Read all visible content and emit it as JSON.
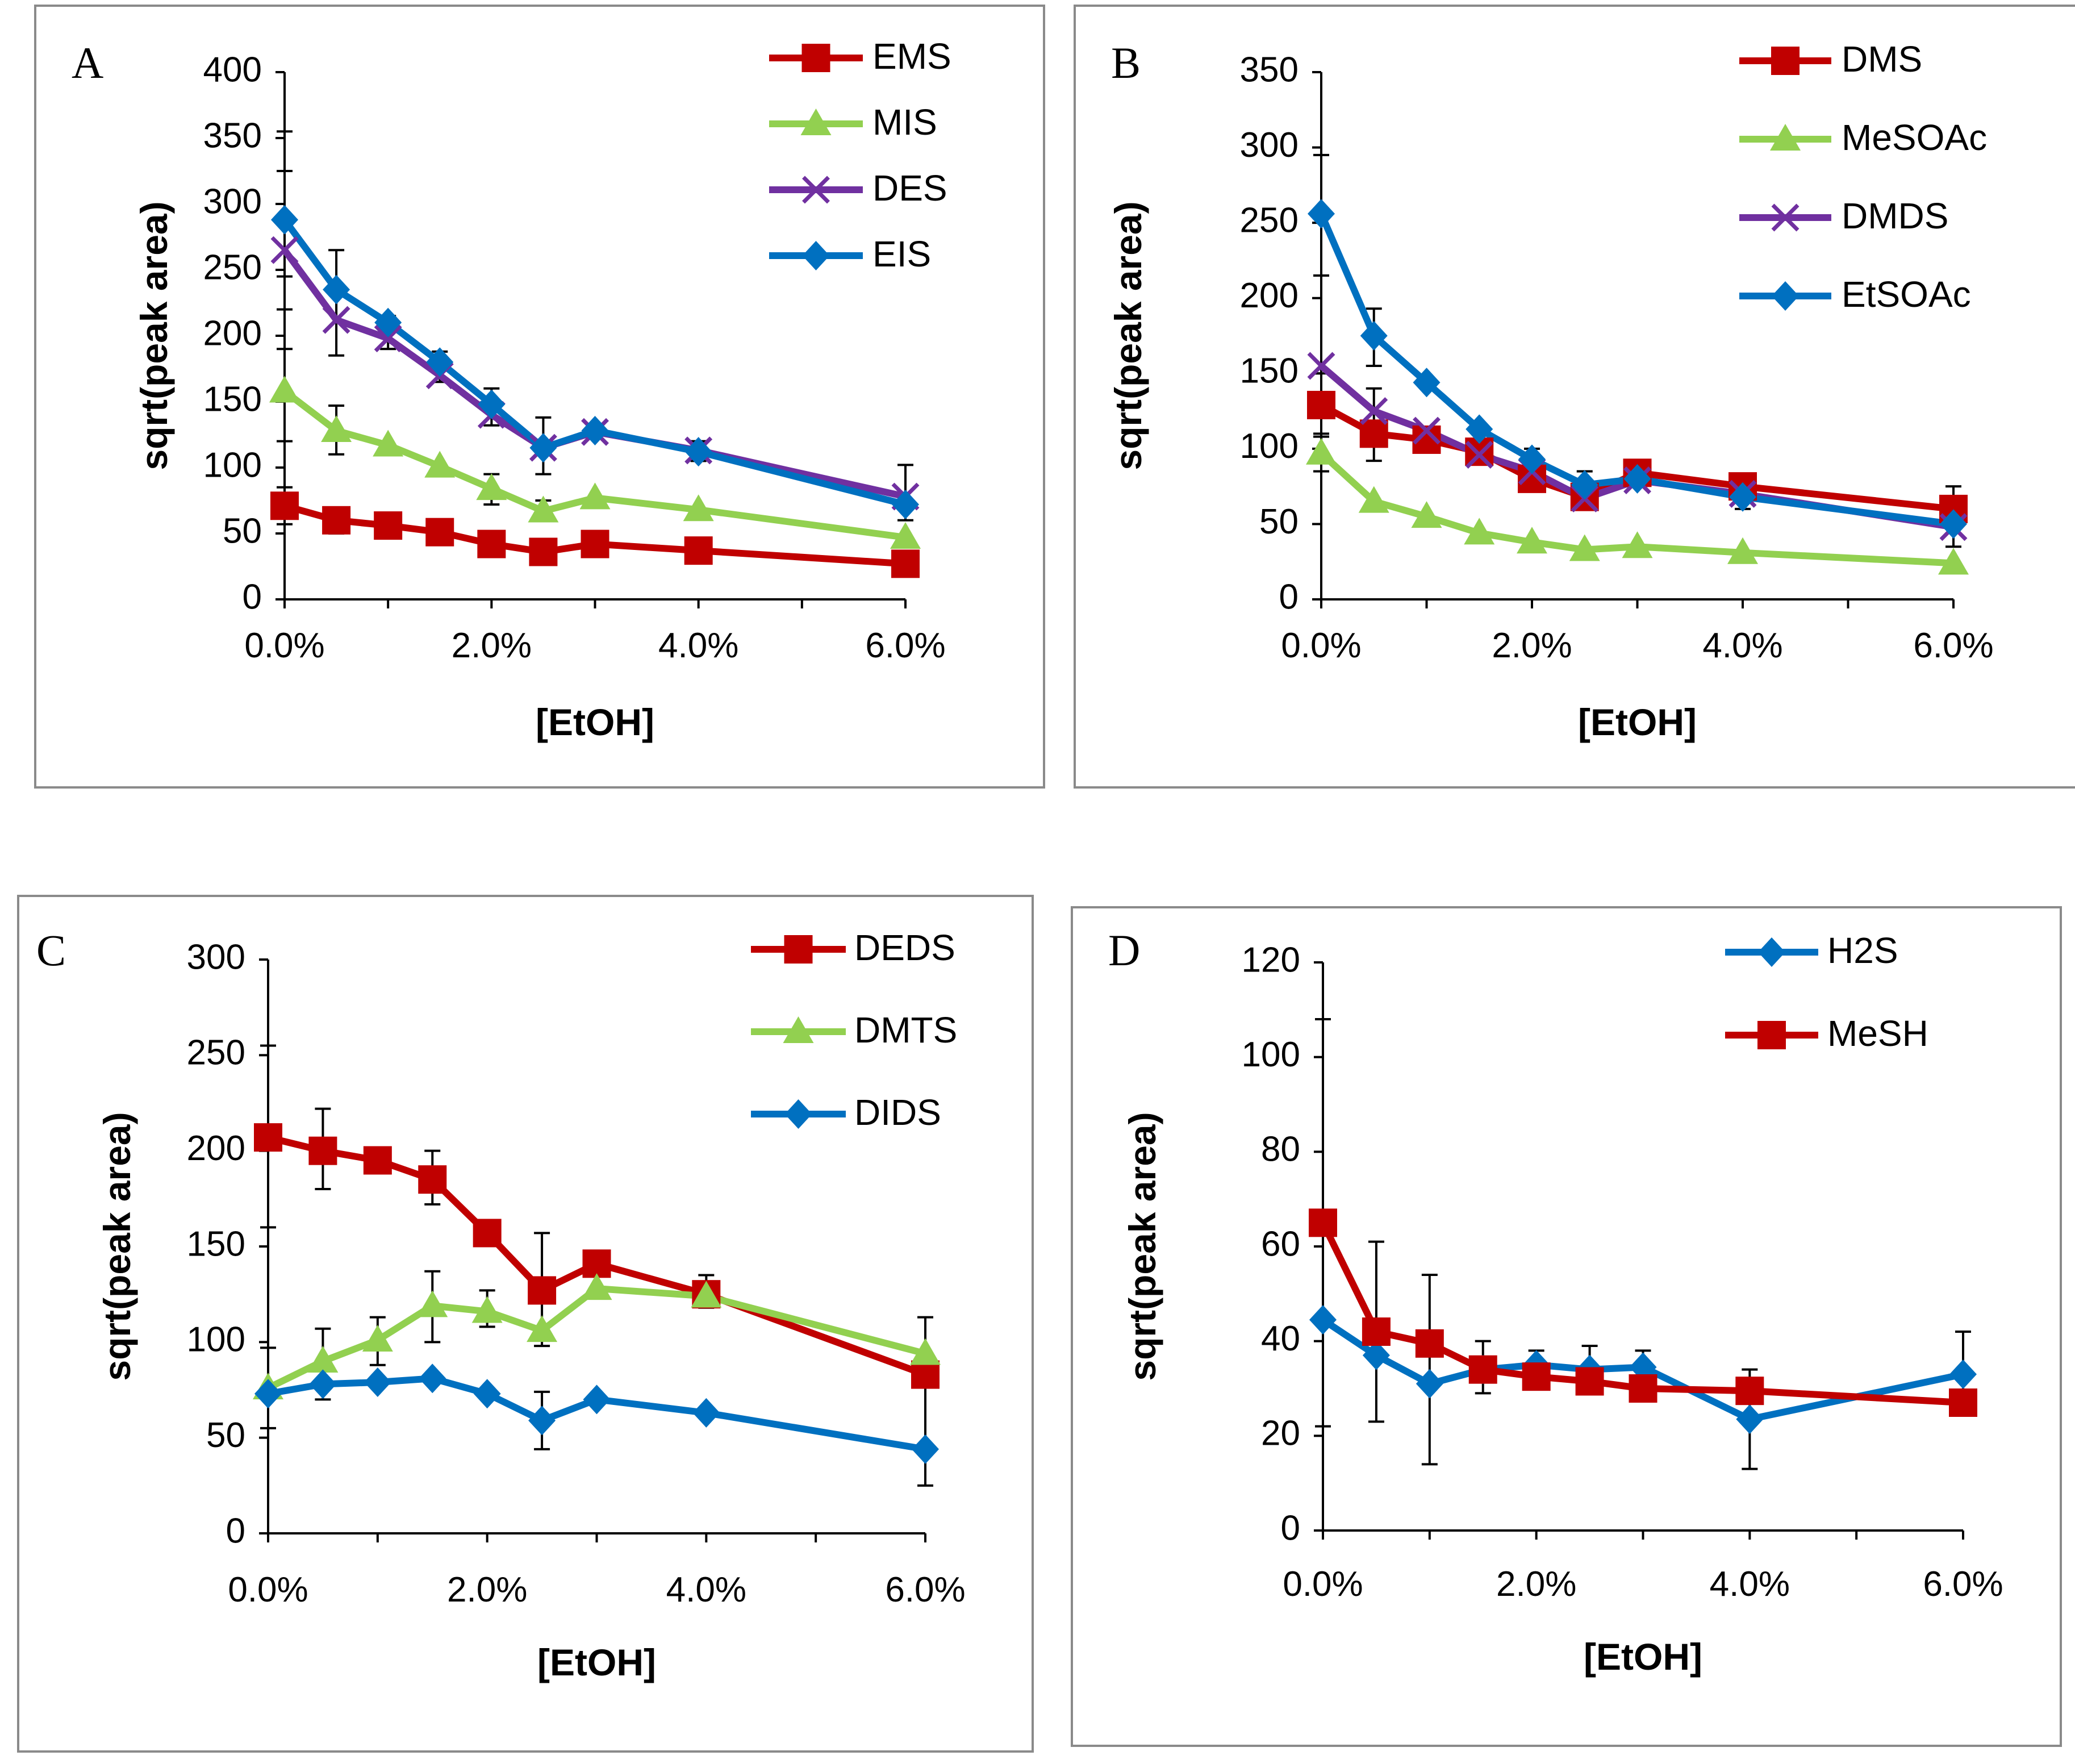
{
  "colors": {
    "red": "#C00000",
    "green": "#92D050",
    "purple": "#7030A0",
    "blue": "#0070C0"
  },
  "chart_data": [
    {
      "type": "line",
      "panel_letter": "A",
      "xlabel": "[EtOH]",
      "ylabel": "sqrt(peak area)",
      "x": [
        0,
        0.5,
        1,
        1.5,
        2,
        2.5,
        3,
        4,
        6
      ],
      "xlim": [
        0,
        6
      ],
      "xticks": [
        0,
        2,
        4,
        6
      ],
      "xtick_labels": [
        "0.0%",
        "2.0%",
        "4.0%",
        "6.0%"
      ],
      "ylim": [
        0,
        400
      ],
      "yticks": [
        0,
        50,
        100,
        150,
        200,
        250,
        300,
        350,
        400
      ],
      "ytick_labels": [
        "0",
        "50",
        "100",
        "150",
        "200",
        "250",
        "300",
        "350",
        "400"
      ],
      "error_bars": [
        {
          "x": 0,
          "low": 220,
          "high": 355
        },
        {
          "x": 0,
          "low": 245,
          "high": 325
        },
        {
          "x": 0,
          "low": 120,
          "high": 190
        },
        {
          "x": 0,
          "low": 57,
          "high": 85
        },
        {
          "x": 0.5,
          "low": 185,
          "high": 265
        },
        {
          "x": 0.5,
          "low": 110,
          "high": 147
        },
        {
          "x": 0.5,
          "low": 50,
          "high": 68
        },
        {
          "x": 1,
          "low": 190,
          "high": 215
        },
        {
          "x": 1.5,
          "low": 165,
          "high": 188
        },
        {
          "x": 2,
          "low": 132,
          "high": 160
        },
        {
          "x": 2,
          "low": 72,
          "high": 95
        },
        {
          "x": 2.5,
          "low": 95,
          "high": 138
        },
        {
          "x": 2.5,
          "low": 60,
          "high": 75
        },
        {
          "x": 4,
          "low": 105,
          "high": 120
        },
        {
          "x": 6,
          "low": 60,
          "high": 102
        }
      ],
      "series": [
        {
          "name": "EMS",
          "color": "#C00000",
          "marker": "square",
          "values": [
            71,
            60,
            56,
            51,
            42,
            36,
            42,
            37,
            27
          ]
        },
        {
          "name": "MIS",
          "color": "#92D050",
          "marker": "triangle",
          "values": [
            158,
            128,
            117,
            101,
            84,
            67,
            77,
            68,
            47
          ]
        },
        {
          "name": "DES",
          "color": "#7030A0",
          "marker": "x",
          "values": [
            265,
            212,
            198,
            170,
            140,
            115,
            127,
            113,
            78
          ]
        },
        {
          "name": "EIS",
          "color": "#0070C0",
          "marker": "diamond",
          "values": [
            288,
            235,
            210,
            180,
            148,
            115,
            128,
            112,
            72
          ]
        }
      ]
    },
    {
      "type": "line",
      "panel_letter": "B",
      "xlabel": "[EtOH]",
      "ylabel": "sqrt(peak area)",
      "x": [
        0,
        0.5,
        1,
        1.5,
        2,
        2.5,
        3,
        4,
        6
      ],
      "xlim": [
        0,
        6
      ],
      "xticks": [
        0,
        2,
        4,
        6
      ],
      "xtick_labels": [
        "0.0%",
        "2.0%",
        "4.0%",
        "6.0%"
      ],
      "ylim": [
        0,
        350
      ],
      "yticks": [
        0,
        50,
        100,
        150,
        200,
        250,
        300,
        350
      ],
      "ytick_labels": [
        "0",
        "50",
        "100",
        "150",
        "200",
        "250",
        "300",
        "350"
      ],
      "error_bars": [
        {
          "x": 0,
          "low": 215,
          "high": 295
        },
        {
          "x": 0,
          "low": 110,
          "high": 150
        },
        {
          "x": 0,
          "low": 85,
          "high": 108
        },
        {
          "x": 0.5,
          "low": 155,
          "high": 193
        },
        {
          "x": 0.5,
          "low": 92,
          "high": 140
        },
        {
          "x": 2,
          "low": 72,
          "high": 100
        },
        {
          "x": 2.5,
          "low": 62,
          "high": 85
        },
        {
          "x": 4,
          "low": 60,
          "high": 82
        },
        {
          "x": 6,
          "low": 35,
          "high": 75
        }
      ],
      "series": [
        {
          "name": "DMS",
          "color": "#C00000",
          "marker": "square",
          "values": [
            129,
            110,
            106,
            98,
            80,
            68,
            84,
            75,
            60
          ]
        },
        {
          "name": "MeSOAc",
          "color": "#92D050",
          "marker": "triangle",
          "values": [
            97,
            65,
            55,
            44,
            38,
            33,
            35,
            31,
            24
          ]
        },
        {
          "name": "DMDS",
          "color": "#7030A0",
          "marker": "x",
          "values": [
            155,
            125,
            112,
            96,
            85,
            67,
            79,
            70,
            48
          ]
        },
        {
          "name": "EtSOAc",
          "color": "#0070C0",
          "marker": "diamond",
          "values": [
            256,
            175,
            144,
            113,
            93,
            76,
            80,
            68,
            50
          ]
        }
      ]
    },
    {
      "type": "line",
      "panel_letter": "C",
      "xlabel": "[EtOH]",
      "ylabel": "sqrt(peak area)",
      "x": [
        0,
        0.5,
        1,
        1.5,
        2,
        2.5,
        3,
        4,
        6
      ],
      "xlim": [
        0,
        6
      ],
      "xticks": [
        0,
        2,
        4,
        6
      ],
      "xtick_labels": [
        "0.0%",
        "2.0%",
        "4.0%",
        "6.0%"
      ],
      "ylim": [
        0,
        300
      ],
      "yticks": [
        0,
        50,
        100,
        150,
        200,
        250,
        300
      ],
      "ytick_labels": [
        "0",
        "50",
        "100",
        "150",
        "200",
        "250",
        "300"
      ],
      "error_bars": [
        {
          "x": 0,
          "low": 160,
          "high": 255
        },
        {
          "x": 0,
          "low": 55,
          "high": 97
        },
        {
          "x": 0.5,
          "low": 180,
          "high": 222
        },
        {
          "x": 0.5,
          "low": 70,
          "high": 107
        },
        {
          "x": 1,
          "low": 88,
          "high": 113
        },
        {
          "x": 1.5,
          "low": 172,
          "high": 200
        },
        {
          "x": 1.5,
          "low": 100,
          "high": 137
        },
        {
          "x": 2,
          "low": 108,
          "high": 127
        },
        {
          "x": 2.5,
          "low": 98,
          "high": 157
        },
        {
          "x": 2.5,
          "low": 44,
          "high": 74
        },
        {
          "x": 4,
          "low": 118,
          "high": 135
        },
        {
          "x": 6,
          "low": 25,
          "high": 113
        }
      ],
      "series": [
        {
          "name": "DEDS",
          "color": "#C00000",
          "marker": "square",
          "values": [
            207,
            200,
            195,
            185,
            157,
            127,
            141,
            125,
            83
          ]
        },
        {
          "name": "DMTS",
          "color": "#92D050",
          "marker": "triangle",
          "values": [
            76,
            90,
            101,
            119,
            116,
            106,
            128,
            124,
            94
          ]
        },
        {
          "name": "DIDS",
          "color": "#0070C0",
          "marker": "diamond",
          "values": [
            73,
            78,
            79,
            81,
            73,
            59,
            70,
            63,
            44
          ]
        }
      ]
    },
    {
      "type": "line",
      "panel_letter": "D",
      "xlabel": "[EtOH]",
      "ylabel": "sqrt(peak area)",
      "x": [
        0,
        0.5,
        1,
        1.5,
        2,
        2.5,
        3,
        4,
        6
      ],
      "xlim": [
        0,
        6
      ],
      "xticks": [
        0,
        2,
        4,
        6
      ],
      "xtick_labels": [
        "0.0%",
        "2.0%",
        "4.0%",
        "6.0%"
      ],
      "ylim": [
        0,
        120
      ],
      "yticks": [
        0,
        20,
        40,
        60,
        80,
        100,
        120
      ],
      "ytick_labels": [
        "0",
        "20",
        "40",
        "60",
        "80",
        "100",
        "120"
      ],
      "error_bars": [
        {
          "x": 0,
          "low": 22,
          "high": 108
        },
        {
          "x": 0.5,
          "low": 23,
          "high": 61
        },
        {
          "x": 1,
          "low": 14,
          "high": 54
        },
        {
          "x": 1.5,
          "low": 29,
          "high": 40
        },
        {
          "x": 2,
          "low": 30,
          "high": 38
        },
        {
          "x": 2.5,
          "low": 29,
          "high": 39
        },
        {
          "x": 3,
          "low": 30,
          "high": 38
        },
        {
          "x": 4,
          "low": 13,
          "high": 34
        },
        {
          "x": 6,
          "low": 27,
          "high": 42
        }
      ],
      "series": [
        {
          "name": "H2S",
          "color": "#0070C0",
          "marker": "diamond",
          "values": [
            44.5,
            37,
            31,
            34,
            35,
            34,
            34.5,
            23.5,
            33
          ]
        },
        {
          "name": "MeSH",
          "color": "#C00000",
          "marker": "square",
          "values": [
            65,
            42,
            39.5,
            34,
            32.5,
            31.5,
            30,
            29.5,
            27
          ]
        }
      ]
    }
  ]
}
